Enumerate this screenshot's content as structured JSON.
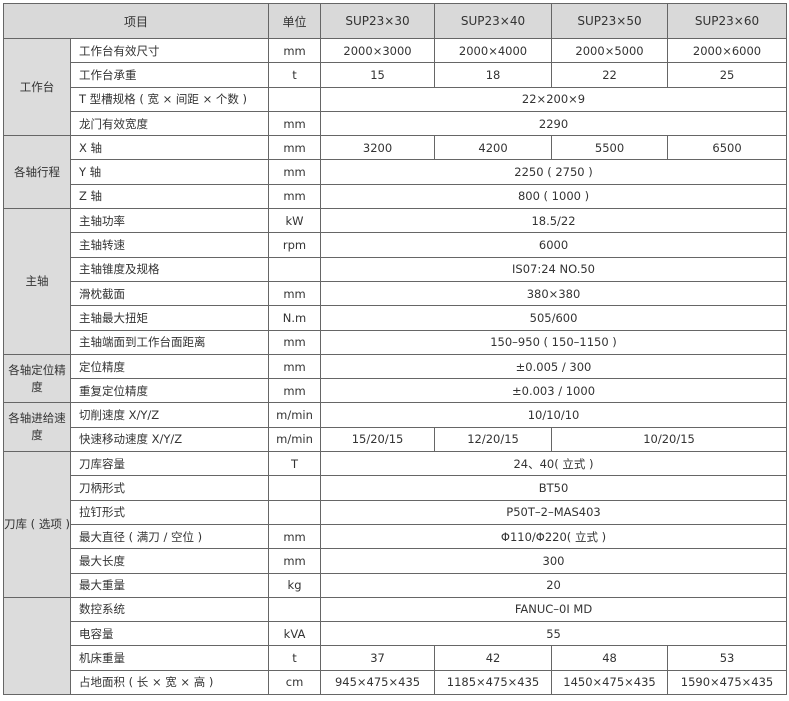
{
  "header": [
    "项目",
    "单位",
    "SUP23×30",
    "SUP23×40",
    "SUP23×50",
    "SUP23×60"
  ],
  "groups": [
    {
      "label": "工作台",
      "rows": [
        {
          "item": "工作台有效尺寸",
          "unit": "mm",
          "values": [
            [
              "2000×3000",
              1
            ],
            [
              "2000×4000",
              1
            ],
            [
              "2000×5000",
              1
            ],
            [
              "2000×6000",
              1
            ]
          ]
        },
        {
          "item": "工作台承重",
          "unit": "t",
          "values": [
            [
              "15",
              1
            ],
            [
              "18",
              1
            ],
            [
              "22",
              1
            ],
            [
              "25",
              1
            ]
          ]
        },
        {
          "item": "T 型槽规格 ( 宽 × 间距 × 个数 )",
          "unit": "",
          "values": [
            [
              "22×200×9",
              4
            ]
          ]
        },
        {
          "item": "龙门有效宽度",
          "unit": "mm",
          "values": [
            [
              "2290",
              4
            ]
          ]
        }
      ]
    },
    {
      "label": "各轴行程",
      "rows": [
        {
          "item": "X 轴",
          "unit": "mm",
          "values": [
            [
              "3200",
              1
            ],
            [
              "4200",
              1
            ],
            [
              "5500",
              1
            ],
            [
              "6500",
              1
            ]
          ]
        },
        {
          "item": "Y 轴",
          "unit": "mm",
          "values": [
            [
              "2250 ( 2750 )",
              4
            ]
          ]
        },
        {
          "item": "Z 轴",
          "unit": "mm",
          "values": [
            [
              "800 ( 1000 )",
              4
            ]
          ]
        }
      ]
    },
    {
      "label": "主轴",
      "rows": [
        {
          "item": "主轴功率",
          "unit": "kW",
          "values": [
            [
              "18.5/22",
              4
            ]
          ]
        },
        {
          "item": "主轴转速",
          "unit": "rpm",
          "values": [
            [
              "6000",
              4
            ]
          ]
        },
        {
          "item": "主轴锥度及规格",
          "unit": "",
          "values": [
            [
              "IS07:24  NO.50",
              4
            ]
          ]
        },
        {
          "item": "滑枕截面",
          "unit": "mm",
          "values": [
            [
              "380×380",
              4
            ]
          ]
        },
        {
          "item": "主轴最大扭矩",
          "unit": "N.m",
          "values": [
            [
              "505/600",
              4
            ]
          ]
        },
        {
          "item": "主轴端面到工作台面距离",
          "unit": "mm",
          "values": [
            [
              "150–950 ( 150–1150 )",
              4
            ]
          ]
        }
      ]
    },
    {
      "label": "各轴定位精度",
      "rows": [
        {
          "item": "定位精度",
          "unit": "mm",
          "values": [
            [
              "±0.005  /  300",
              4
            ]
          ]
        },
        {
          "item": "重复定位精度",
          "unit": "mm",
          "values": [
            [
              "±0.003  /  1000",
              4
            ]
          ]
        }
      ]
    },
    {
      "label": "各轴进给速度",
      "rows": [
        {
          "item": "切削速度 X/Y/Z",
          "unit": "m/min",
          "values": [
            [
              "10/10/10",
              4
            ]
          ]
        },
        {
          "item": "快速移动速度 X/Y/Z",
          "unit": "m/min",
          "values": [
            [
              "15/20/15",
              1
            ],
            [
              "12/20/15",
              1
            ],
            [
              "10/20/15",
              2
            ]
          ]
        }
      ]
    },
    {
      "label": "刀库 ( 选项 )",
      "rows": [
        {
          "item": "刀库容量",
          "unit": "T",
          "values": [
            [
              "24、40( 立式 )",
              4
            ]
          ]
        },
        {
          "item": "刀柄形式",
          "unit": "",
          "values": [
            [
              "BT50",
              4
            ]
          ]
        },
        {
          "item": "拉钉形式",
          "unit": "",
          "values": [
            [
              "P50T–2–MAS403",
              4
            ]
          ]
        },
        {
          "item": "最大直径 ( 满刀 / 空位 )",
          "unit": "mm",
          "values": [
            [
              "Φ110/Φ220( 立式 )",
              4
            ]
          ]
        },
        {
          "item": "最大长度",
          "unit": "mm",
          "values": [
            [
              "300",
              4
            ]
          ]
        },
        {
          "item": "最大重量",
          "unit": "kg",
          "values": [
            [
              "20",
              4
            ]
          ]
        }
      ]
    },
    {
      "label": "",
      "rows": [
        {
          "item": "数控系统",
          "unit": "",
          "values": [
            [
              "FANUC–0I MD",
              4
            ]
          ]
        },
        {
          "item": "电容量",
          "unit": "kVA",
          "values": [
            [
              "55",
              4
            ]
          ]
        },
        {
          "item": "机床重量",
          "unit": "t",
          "values": [
            [
              "37",
              1
            ],
            [
              "42",
              1
            ],
            [
              "48",
              1
            ],
            [
              "53",
              1
            ]
          ]
        },
        {
          "item": "占地面积 ( 长 × 宽 × 高 )",
          "unit": "cm",
          "values": [
            [
              "945×475×435",
              1
            ],
            [
              "1185×475×435",
              1
            ],
            [
              "1450×475×435",
              1
            ],
            [
              "1590×475×435",
              1
            ]
          ]
        }
      ]
    }
  ]
}
